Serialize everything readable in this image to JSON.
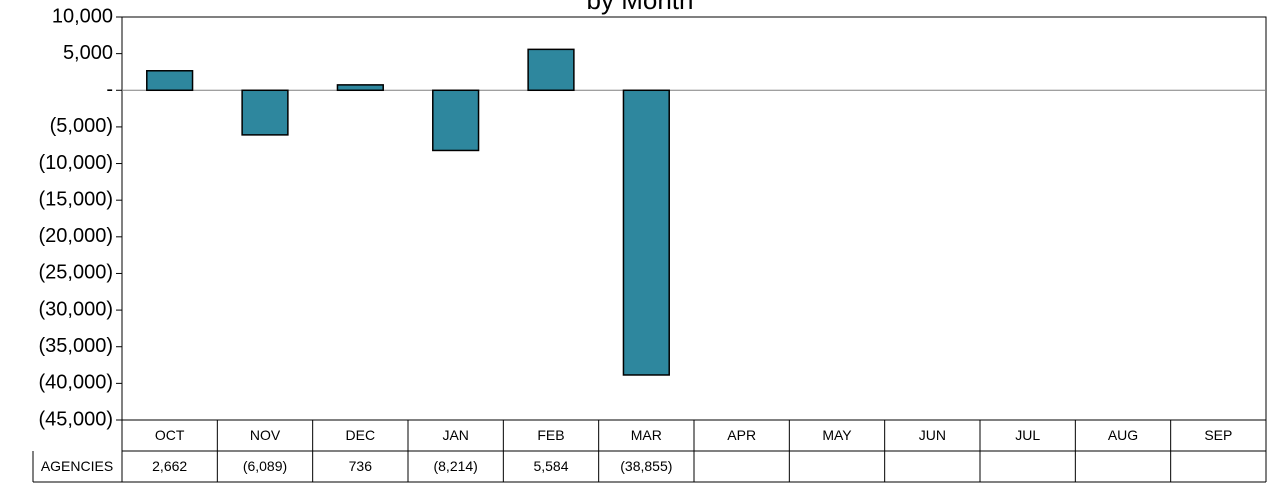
{
  "chart_data": {
    "type": "bar",
    "title": "by Month",
    "categories": [
      "OCT",
      "NOV",
      "DEC",
      "JAN",
      "FEB",
      "MAR",
      "APR",
      "MAY",
      "JUN",
      "JUL",
      "AUG",
      "SEP"
    ],
    "series": [
      {
        "name": "AGENCIES",
        "color": "#2e879e",
        "values": [
          2662,
          -6089,
          736,
          -8214,
          5584,
          -38855,
          null,
          null,
          null,
          null,
          null,
          null
        ],
        "value_labels": [
          "2,662",
          "(6,089)",
          "736",
          "(8,214)",
          "5,584",
          "(38,855)",
          null,
          null,
          null,
          null,
          null,
          null
        ]
      }
    ],
    "ylim": [
      -45000,
      10000
    ],
    "yticks": [
      {
        "value": 10000,
        "label": "10,000"
      },
      {
        "value": 5000,
        "label": "5,000"
      },
      {
        "value": 0,
        "label": "-"
      },
      {
        "value": -5000,
        "label": "(5,000)"
      },
      {
        "value": -10000,
        "label": "(10,000)"
      },
      {
        "value": -15000,
        "label": "(15,000)"
      },
      {
        "value": -20000,
        "label": "(20,000)"
      },
      {
        "value": -25000,
        "label": "(25,000)"
      },
      {
        "value": -30000,
        "label": "(30,000)"
      },
      {
        "value": -35000,
        "label": "(35,000)"
      },
      {
        "value": -40000,
        "label": "(40,000)"
      },
      {
        "value": -45000,
        "label": "(45,000)"
      }
    ],
    "grid": false
  }
}
